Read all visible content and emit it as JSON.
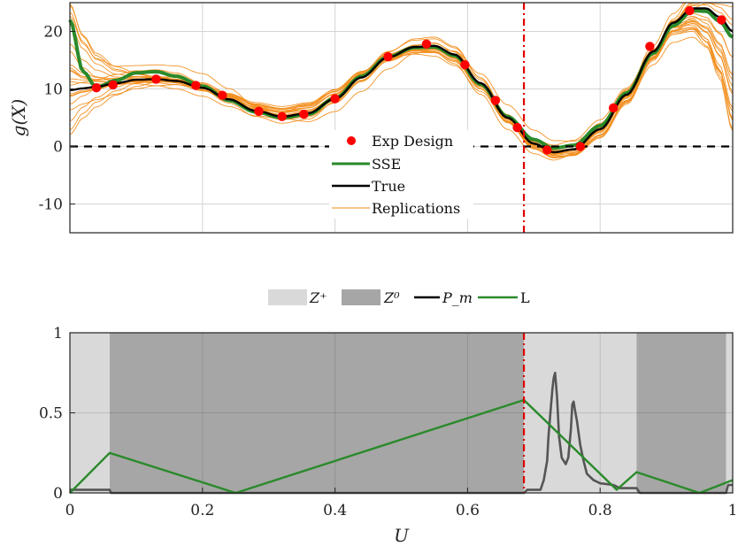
{
  "chart_data": [
    {
      "type": "line",
      "ylabel": "g(X)",
      "xlim": [
        0,
        1
      ],
      "ylim": [
        -15,
        25
      ],
      "y_ticks": [
        "-10",
        "0",
        "10",
        "20"
      ],
      "grid": true,
      "legend_placement": "bottom-center",
      "legend": [
        "Exp Design",
        "SSE",
        "True",
        "Replications"
      ],
      "colors": {
        "exp_design": "#ff0000",
        "sse": "#2a8a2a",
        "true": "#000000",
        "replications": "#f28e1c",
        "zero_line": "#000000",
        "vline": "#e00000"
      },
      "vertical_line_x": 0.685,
      "zero_line_y": 0,
      "exp_design": {
        "x": [
          0.04,
          0.065,
          0.13,
          0.19,
          0.23,
          0.285,
          0.32,
          0.353,
          0.4,
          0.48,
          0.538,
          0.596,
          0.642,
          0.675,
          0.72,
          0.77,
          0.82,
          0.875,
          0.935,
          0.983
        ],
        "y": [
          10.2,
          10.7,
          11.7,
          10.6,
          8.9,
          6.1,
          5.2,
          5.6,
          8.3,
          15.6,
          17.8,
          14.2,
          8.0,
          3.3,
          -0.6,
          0.0,
          6.7,
          17.4,
          23.6,
          22.0
        ]
      },
      "true_curve": {
        "x": [
          0,
          0.02,
          0.04,
          0.07,
          0.1,
          0.13,
          0.16,
          0.2,
          0.24,
          0.28,
          0.32,
          0.36,
          0.4,
          0.44,
          0.48,
          0.52,
          0.55,
          0.58,
          0.62,
          0.66,
          0.7,
          0.73,
          0.76,
          0.8,
          0.84,
          0.88,
          0.91,
          0.94,
          0.96,
          0.98,
          1.0
        ],
        "y": [
          9.8,
          10.1,
          10.4,
          11.0,
          11.6,
          11.7,
          11.4,
          10.2,
          8.2,
          6.2,
          5.2,
          5.8,
          8.3,
          12.0,
          15.5,
          17.3,
          17.5,
          16.0,
          11.0,
          5.0,
          0.5,
          -1.0,
          -0.5,
          3.0,
          9.0,
          16.5,
          21.5,
          24.0,
          24.0,
          22.5,
          20.0
        ]
      },
      "sse_curve": {
        "x": [
          0,
          0.02,
          0.04,
          0.07,
          0.1,
          0.13,
          0.16,
          0.2,
          0.24,
          0.28,
          0.32,
          0.36,
          0.4,
          0.44,
          0.48,
          0.52,
          0.55,
          0.58,
          0.62,
          0.66,
          0.7,
          0.73,
          0.76,
          0.8,
          0.84,
          0.88,
          0.91,
          0.94,
          0.96,
          0.98,
          1.0
        ],
        "y": [
          22.0,
          13.0,
          10.3,
          11.5,
          12.8,
          13.0,
          12.2,
          10.5,
          8.0,
          6.0,
          5.0,
          5.6,
          8.4,
          12.2,
          15.6,
          17.2,
          17.3,
          15.8,
          10.8,
          5.2,
          1.2,
          -0.3,
          0.2,
          3.6,
          9.3,
          16.2,
          21.0,
          23.6,
          23.5,
          21.8,
          19.0
        ]
      }
    },
    {
      "type": "line",
      "xlabel": "U",
      "xlim": [
        0,
        1
      ],
      "ylim": [
        0,
        1
      ],
      "x_ticks": [
        "0",
        "0.2",
        "0.4",
        "0.6",
        "0.8",
        "1"
      ],
      "y_ticks": [
        "0",
        "0.5",
        "1"
      ],
      "grid": true,
      "legend_placement": "top-center",
      "legend": [
        "Z⁺",
        "Z⁰",
        "P_m",
        "L"
      ],
      "colors": {
        "z_plus": "#d9d9d9",
        "z_zero": "#a6a6a6",
        "pm": "#555555",
        "l": "#2a8a2a",
        "vline": "#e00000"
      },
      "vertical_line_x": 0.685,
      "regions": [
        {
          "type": "Z+",
          "x0": 0.0,
          "x1": 0.06
        },
        {
          "type": "Z0",
          "x0": 0.06,
          "x1": 0.685
        },
        {
          "type": "Z+",
          "x0": 0.685,
          "x1": 0.855
        },
        {
          "type": "Z0",
          "x0": 0.855,
          "x1": 0.99
        },
        {
          "type": "Z+",
          "x0": 0.99,
          "x1": 1.0
        }
      ],
      "L": {
        "x": [
          0.0,
          0.06,
          0.25,
          0.685,
          0.825,
          0.855,
          0.95,
          1.0
        ],
        "y": [
          0.0,
          0.25,
          0.0,
          0.58,
          0.02,
          0.13,
          0.0,
          0.08
        ]
      },
      "Pm": {
        "x": [
          0.0,
          0.06,
          0.062,
          0.685,
          0.69,
          0.71,
          0.715,
          0.72,
          0.722,
          0.725,
          0.728,
          0.73,
          0.732,
          0.735,
          0.738,
          0.742,
          0.748,
          0.752,
          0.756,
          0.758,
          0.76,
          0.762,
          0.765,
          0.77,
          0.775,
          0.78,
          0.79,
          0.8,
          0.82,
          0.83,
          0.855,
          0.86,
          0.99,
          0.993,
          1.0
        ],
        "y": [
          0.02,
          0.02,
          0.0,
          0.0,
          0.02,
          0.02,
          0.08,
          0.2,
          0.35,
          0.5,
          0.65,
          0.72,
          0.75,
          0.6,
          0.35,
          0.22,
          0.18,
          0.22,
          0.4,
          0.55,
          0.57,
          0.52,
          0.45,
          0.3,
          0.2,
          0.12,
          0.08,
          0.06,
          0.05,
          0.03,
          0.03,
          0.0,
          0.0,
          0.05,
          0.05
        ]
      }
    }
  ]
}
